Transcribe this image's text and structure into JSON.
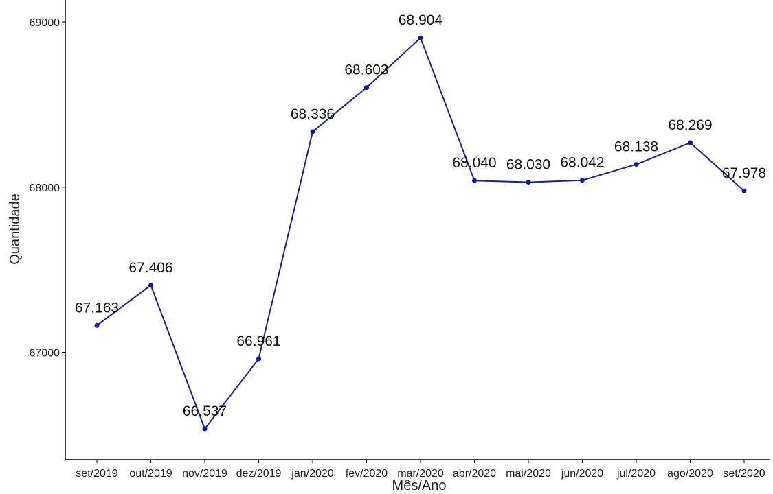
{
  "chart_data": {
    "type": "line",
    "title": "",
    "xlabel": "Mês/Ano",
    "ylabel": "Quantidade",
    "categories": [
      "set/2019",
      "out/2019",
      "nov/2019",
      "dez/2019",
      "jan/2020",
      "fev/2020",
      "mar/2020",
      "abr/2020",
      "mai/2020",
      "jun/2020",
      "jul/2020",
      "ago/2020",
      "set/2020"
    ],
    "series": [
      {
        "values": [
          67163,
          67406,
          66537,
          66961,
          68336,
          68603,
          68904,
          68040,
          68030,
          68042,
          68138,
          68269,
          67978
        ],
        "labels": [
          "67.163",
          "67.406",
          "66.537",
          "66.961",
          "68.336",
          "68.603",
          "68.904",
          "68.040",
          "68.030",
          "68.042",
          "68.138",
          "68.269",
          "67.978"
        ]
      }
    ],
    "yticks": [
      67000,
      68000,
      69000
    ],
    "ytick_labels": [
      "67000",
      "68000",
      "69000"
    ],
    "ylim": [
      66350,
      69100
    ],
    "grid": false,
    "legend": "none",
    "colors": {
      "line": "#1a237e",
      "point": "#0d1aa8",
      "axis": "#000000"
    }
  }
}
